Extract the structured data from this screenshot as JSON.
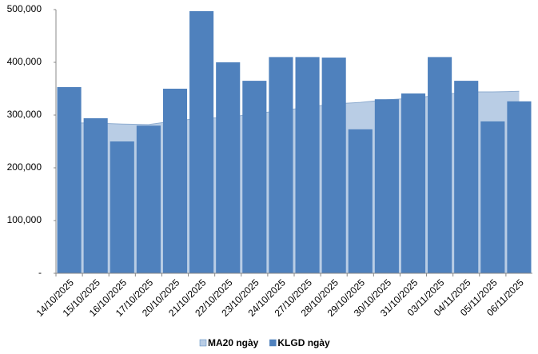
{
  "chart_data": {
    "type": "bar-area",
    "categories": [
      "14/10/2025",
      "15/10/2025",
      "16/10/2025",
      "17/10/2025",
      "20/10/2025",
      "21/10/2025",
      "22/10/2025",
      "23/10/2025",
      "24/10/2025",
      "27/10/2025",
      "28/10/2025",
      "29/10/2025",
      "30/10/2025",
      "31/10/2025",
      "03/11/2025",
      "04/11/2025",
      "05/11/2025",
      "06/11/2025"
    ],
    "series": [
      {
        "name": "MA20 ngày",
        "kind": "area",
        "color": "#b9cde5",
        "values": [
          285000,
          285000,
          283000,
          282000,
          289000,
          294000,
          295000,
          303000,
          308000,
          315000,
          321000,
          324000,
          329000,
          332000,
          338000,
          344000,
          344000,
          345000
        ]
      },
      {
        "name": "KLGD ngày",
        "kind": "bar",
        "color": "#4f81bd",
        "values": [
          353000,
          294000,
          250000,
          280000,
          350000,
          497000,
          400000,
          365000,
          410000,
          410000,
          409000,
          273000,
          330000,
          341000,
          410000,
          365000,
          288000,
          326000
        ]
      }
    ],
    "ylim": [
      0,
      500000
    ],
    "yticks": [
      {
        "value": 0,
        "label": "-"
      },
      {
        "value": 100000,
        "label": "100,000"
      },
      {
        "value": 200000,
        "label": "200,000"
      },
      {
        "value": 300000,
        "label": "300,000"
      },
      {
        "value": 400000,
        "label": "400,000"
      },
      {
        "value": 500000,
        "label": "500,000"
      }
    ],
    "legend": "bottom"
  }
}
